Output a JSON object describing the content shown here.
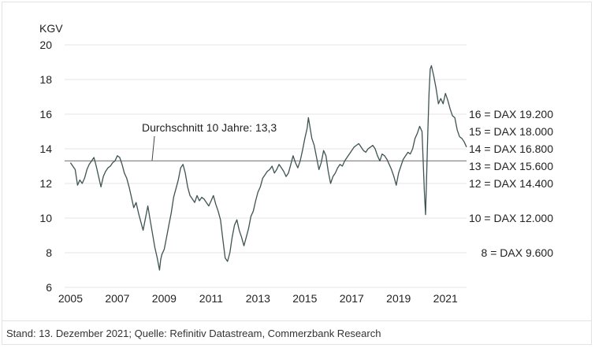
{
  "source_note": "Stand: 13. Dezember 2021; Quelle: Refinitiv Datastream, Commerzbank Research",
  "chart_data": {
    "type": "line",
    "ylabel": "KGV",
    "ylim": [
      6,
      20
    ],
    "yticks": [
      "6",
      "8",
      "10",
      "12",
      "14",
      "16",
      "18",
      "20"
    ],
    "xlim": [
      2004.75,
      2021.9
    ],
    "xticks": [
      "2005",
      "2007",
      "2009",
      "2011",
      "2013",
      "2015",
      "2017",
      "2019",
      "2021"
    ],
    "grid": "horizontal",
    "average": {
      "label": "Durchschnitt 10 Jahre: 13,3",
      "value": 13.3
    },
    "right_labels": [
      {
        "text": "16 = DAX 19.200",
        "y": 16
      },
      {
        "text": "15 = DAX 18.000",
        "y": 15
      },
      {
        "text": "14 = DAX 16.800",
        "y": 14
      },
      {
        "text": "13 = DAX 15.600",
        "y": 13
      },
      {
        "text": "12 = DAX 14.400",
        "y": 12
      },
      {
        "text": "10 = DAX 12.000",
        "y": 10
      },
      {
        "text": "8 = DAX 9.600",
        "y": 8
      }
    ],
    "colors": {
      "line": "#3f5352",
      "average": "#8a8a8a",
      "grid": "#e6e6e6"
    },
    "series": [
      {
        "x": [
          2005.0,
          2005.1,
          2005.2,
          2005.3,
          2005.4,
          2005.5,
          2005.6,
          2005.7,
          2005.8,
          2005.9,
          2006.0,
          2006.1,
          2006.2,
          2006.3,
          2006.4,
          2006.5,
          2006.6,
          2006.7,
          2006.8,
          2006.9,
          2007.0,
          2007.1,
          2007.2,
          2007.3,
          2007.4,
          2007.5,
          2007.6,
          2007.7,
          2007.8,
          2007.9,
          2008.0,
          2008.1,
          2008.2,
          2008.3,
          2008.4,
          2008.5,
          2008.6,
          2008.7,
          2008.8,
          2008.85,
          2008.9,
          2009.0,
          2009.1,
          2009.2,
          2009.3,
          2009.4,
          2009.5,
          2009.6,
          2009.7,
          2009.8,
          2009.9,
          2010.0,
          2010.1,
          2010.2,
          2010.3,
          2010.4,
          2010.5,
          2010.6,
          2010.7,
          2010.8,
          2010.9,
          2011.0,
          2011.1,
          2011.2,
          2011.3,
          2011.4,
          2011.5,
          2011.6,
          2011.7,
          2011.8,
          2011.9,
          2012.0,
          2012.1,
          2012.2,
          2012.3,
          2012.4,
          2012.5,
          2012.6,
          2012.7,
          2012.8,
          2012.9,
          2013.0,
          2013.1,
          2013.2,
          2013.3,
          2013.4,
          2013.5,
          2013.6,
          2013.7,
          2013.8,
          2013.9,
          2014.0,
          2014.1,
          2014.2,
          2014.3,
          2014.4,
          2014.5,
          2014.6,
          2014.7,
          2014.8,
          2014.9,
          2015.0,
          2015.1,
          2015.15,
          2015.2,
          2015.3,
          2015.4,
          2015.5,
          2015.6,
          2015.7,
          2015.8,
          2015.9,
          2016.0,
          2016.1,
          2016.2,
          2016.3,
          2016.4,
          2016.5,
          2016.6,
          2016.7,
          2016.8,
          2016.9,
          2017.0,
          2017.1,
          2017.2,
          2017.3,
          2017.4,
          2017.5,
          2017.6,
          2017.7,
          2017.8,
          2017.9,
          2018.0,
          2018.1,
          2018.2,
          2018.3,
          2018.4,
          2018.5,
          2018.6,
          2018.7,
          2018.8,
          2018.9,
          2019.0,
          2019.1,
          2019.2,
          2019.3,
          2019.4,
          2019.5,
          2019.6,
          2019.7,
          2019.8,
          2019.9,
          2020.0,
          2020.1,
          2020.15,
          2020.2,
          2020.25,
          2020.3,
          2020.35,
          2020.4,
          2020.5,
          2020.6,
          2020.7,
          2020.8,
          2020.9,
          2021.0,
          2021.1,
          2021.2,
          2021.3,
          2021.4,
          2021.5,
          2021.6,
          2021.7,
          2021.8,
          2021.9
        ],
        "y": [
          13.2,
          13.0,
          12.8,
          11.9,
          12.2,
          12.0,
          12.3,
          12.8,
          13.1,
          13.3,
          13.5,
          13.0,
          12.4,
          11.8,
          12.4,
          12.7,
          12.9,
          13.0,
          13.2,
          13.3,
          13.6,
          13.5,
          13.1,
          12.6,
          12.3,
          11.8,
          11.2,
          10.6,
          10.9,
          10.3,
          9.8,
          9.3,
          10.0,
          10.7,
          9.9,
          9.1,
          8.3,
          7.7,
          7.0,
          7.6,
          7.9,
          8.2,
          8.9,
          9.6,
          10.3,
          11.2,
          11.7,
          12.2,
          12.9,
          13.1,
          12.6,
          11.8,
          11.3,
          11.1,
          10.9,
          11.3,
          11.0,
          11.2,
          11.1,
          10.9,
          10.7,
          11.0,
          11.3,
          10.8,
          10.4,
          9.9,
          8.8,
          7.7,
          7.5,
          8.0,
          8.9,
          9.6,
          9.9,
          9.3,
          8.9,
          8.4,
          8.9,
          9.4,
          10.1,
          10.4,
          11.0,
          11.5,
          11.8,
          12.3,
          12.5,
          12.7,
          12.8,
          13.0,
          12.6,
          12.8,
          13.1,
          12.9,
          12.7,
          12.4,
          12.6,
          13.1,
          13.6,
          13.2,
          12.9,
          13.3,
          13.9,
          14.6,
          15.2,
          15.8,
          15.4,
          14.6,
          14.2,
          13.5,
          12.8,
          13.2,
          13.9,
          13.6,
          12.7,
          12.0,
          12.4,
          12.6,
          12.9,
          13.1,
          13.0,
          13.3,
          13.5,
          13.7,
          13.9,
          14.1,
          14.2,
          14.3,
          14.1,
          13.9,
          13.8,
          14.0,
          14.1,
          14.2,
          14.0,
          13.6,
          13.3,
          13.7,
          13.6,
          13.4,
          13.1,
          12.8,
          12.4,
          11.9,
          12.6,
          13.0,
          13.4,
          13.6,
          13.8,
          13.7,
          14.0,
          14.6,
          14.9,
          15.3,
          15.0,
          11.5,
          10.2,
          12.5,
          15.0,
          17.2,
          18.6,
          18.8,
          18.2,
          17.5,
          16.6,
          16.9,
          16.6,
          17.2,
          16.8,
          16.3,
          15.9,
          15.8,
          15.1,
          14.7,
          14.6,
          14.4,
          14.1
        ]
      }
    ]
  }
}
